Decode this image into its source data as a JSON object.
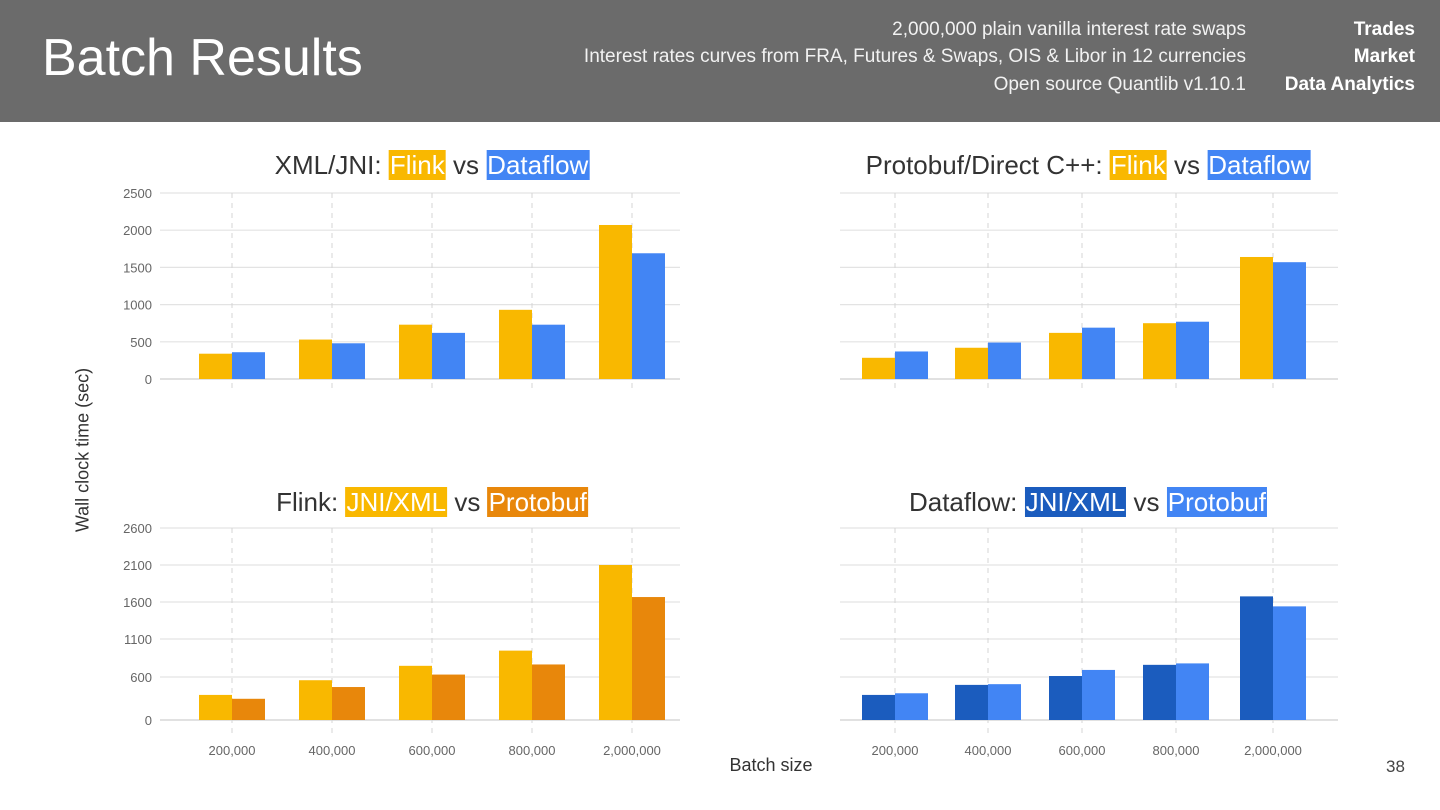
{
  "header": {
    "title": "Batch Results",
    "lines": [
      "2,000,000 plain vanilla interest rate swaps",
      "Interest rates curves from FRA, Futures & Swaps, OIS & Libor in 12 currencies",
      "Open source Quantlib v1.10.1"
    ],
    "labels": [
      "Trades",
      "Market",
      "Data Analytics"
    ]
  },
  "axis": {
    "ylabel": "Wall clock time (sec)",
    "xlabel": "Batch size"
  },
  "page_number": "38",
  "colors": {
    "flink": "#f9b800",
    "dataflow": "#4285f4",
    "protobuf_flink": "#e8870b",
    "jni_dataflow": "#1b5cbe"
  },
  "chart_data": [
    {
      "type": "bar",
      "title_prefix": "XML/JNI: ",
      "title_a": "Flink",
      "title_vs": " vs ",
      "title_b": "Dataflow",
      "categories": [
        "200,000",
        "400,000",
        "600,000",
        "800,000",
        "2,000,000"
      ],
      "y_ticks": [
        "0",
        "500",
        "1000",
        "1500",
        "2000",
        "2500"
      ],
      "ylim": [
        0,
        2500
      ],
      "series": [
        {
          "name": "Flink",
          "color": "#f9b800",
          "values": [
            340,
            530,
            730,
            930,
            2070
          ]
        },
        {
          "name": "Dataflow",
          "color": "#4285f4",
          "values": [
            360,
            480,
            620,
            730,
            1690
          ]
        }
      ]
    },
    {
      "type": "bar",
      "title_prefix": "Protobuf/Direct C++: ",
      "title_a": "Flink",
      "title_vs": " vs ",
      "title_b": "Dataflow",
      "categories": [
        "200,000",
        "400,000",
        "600,000",
        "800,000",
        "2,000,000"
      ],
      "y_ticks": [
        "0",
        "500",
        "1000",
        "1500",
        "2000",
        "2500"
      ],
      "ylim": [
        0,
        2500
      ],
      "series": [
        {
          "name": "Flink",
          "color": "#f9b800",
          "values": [
            285,
            420,
            620,
            750,
            1640
          ]
        },
        {
          "name": "Dataflow",
          "color": "#4285f4",
          "values": [
            370,
            490,
            690,
            770,
            1570
          ]
        }
      ]
    },
    {
      "type": "bar",
      "title_prefix": "Flink: ",
      "title_a": "JNI/XML",
      "title_vs": " vs ",
      "title_b": "Protobuf",
      "categories": [
        "200,000",
        "400,000",
        "600,000",
        "800,000",
        "2,000,000"
      ],
      "y_ticks": [
        "0",
        "600",
        "1100",
        "1600",
        "2100",
        "2600"
      ],
      "ylim": [
        0,
        2600
      ],
      "series": [
        {
          "name": "JNI/XML",
          "color": "#f9b800",
          "values": [
            350,
            555,
            747,
            947,
            2100
          ]
        },
        {
          "name": "Protobuf",
          "color": "#e8870b",
          "values": [
            296,
            460,
            632,
            765,
            1667
          ]
        }
      ]
    },
    {
      "type": "bar",
      "title_prefix": "Dataflow: ",
      "title_a": "JNI/XML",
      "title_vs": " vs ",
      "title_b": "Protobuf",
      "categories": [
        "200,000",
        "400,000",
        "600,000",
        "800,000",
        "2,000,000"
      ],
      "y_ticks": [
        "0",
        "600",
        "1100",
        "1600",
        "2100",
        "2600"
      ],
      "ylim": [
        0,
        2600
      ],
      "series": [
        {
          "name": "JNI/XML",
          "color": "#1b5cbe",
          "values": [
            350,
            490,
            613,
            760,
            1676
          ]
        },
        {
          "name": "Protobuf",
          "color": "#4285f4",
          "values": [
            373,
            500,
            693,
            779,
            1541
          ]
        }
      ]
    }
  ]
}
